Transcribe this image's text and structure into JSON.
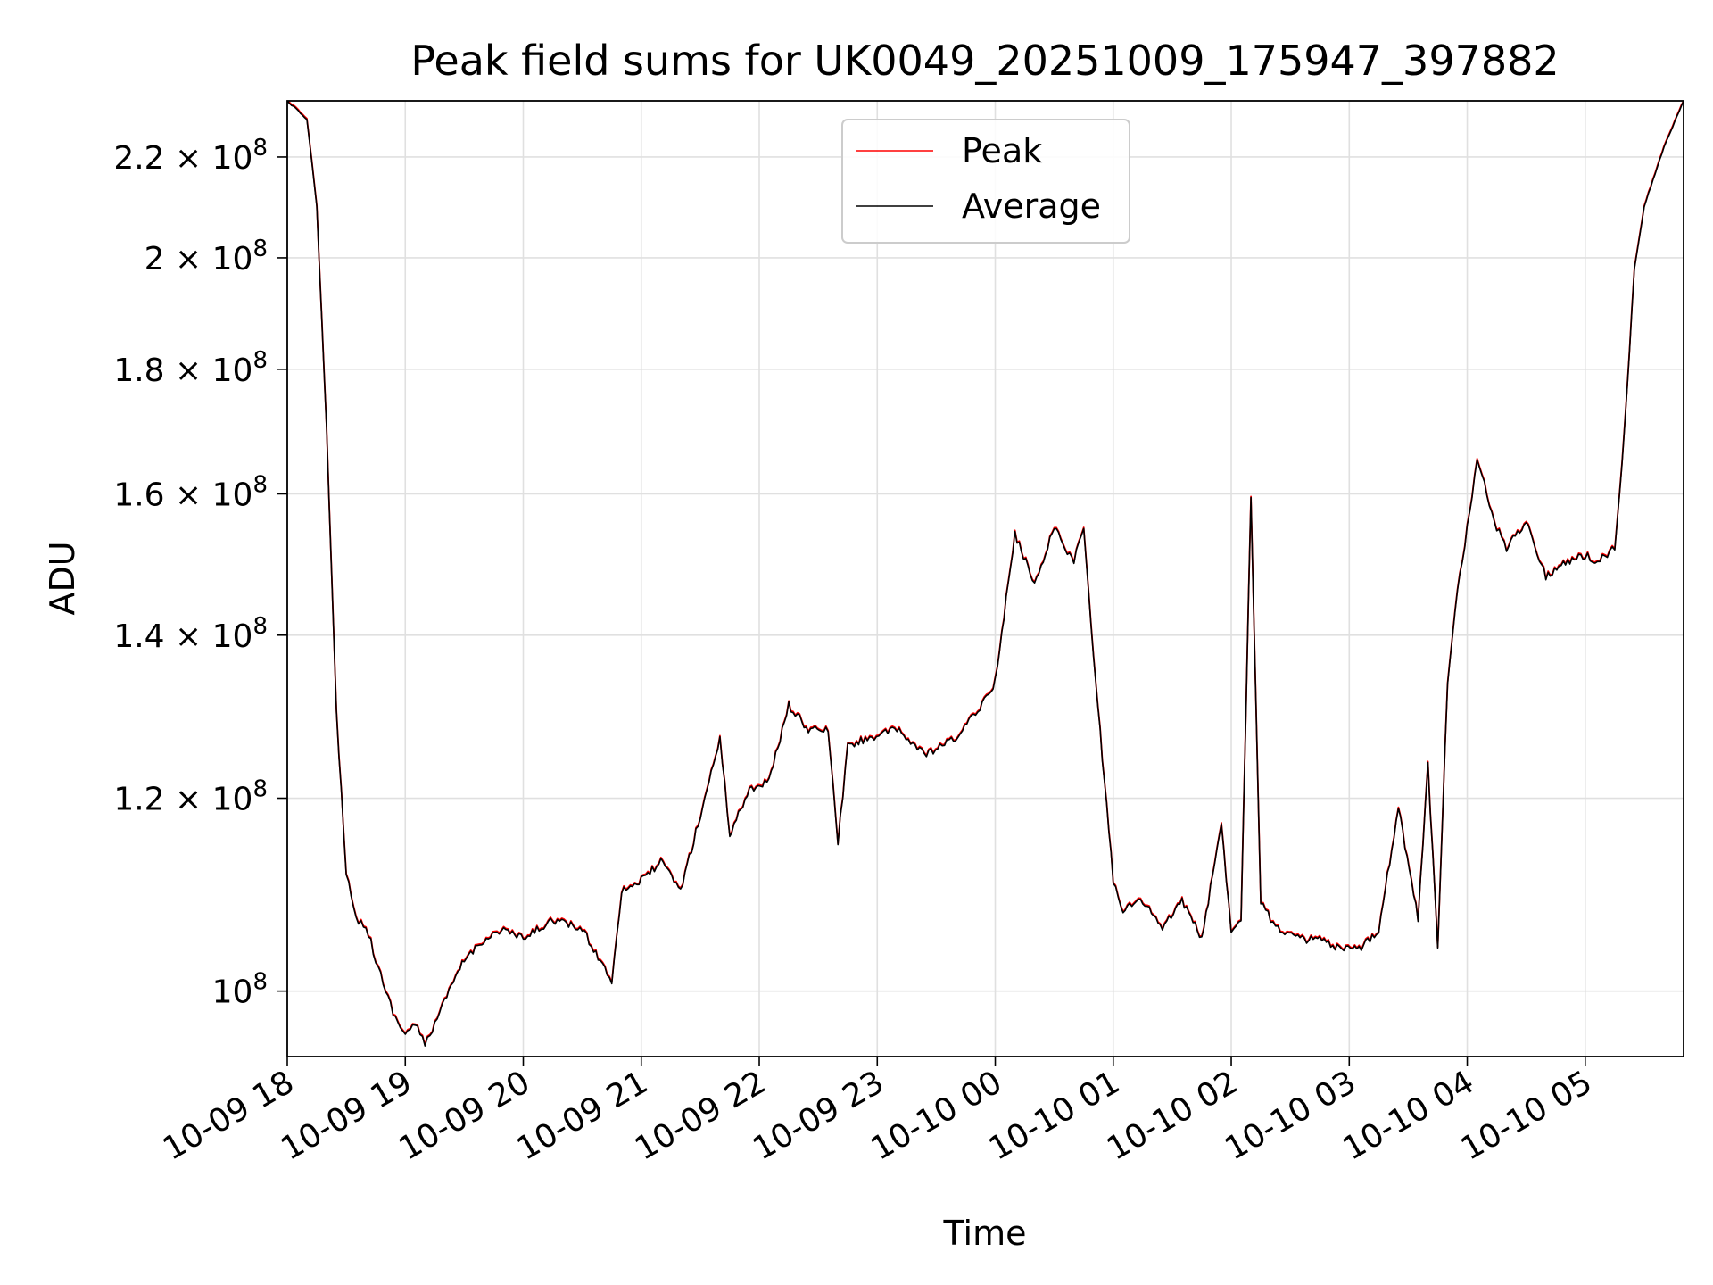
{
  "chart_data": {
    "type": "line",
    "title": "Peak field sums for UK0049_20251009_175947_397882",
    "xlabel": "Time",
    "ylabel": "ADU",
    "yscale": "log",
    "ylim": [
      94000000,
      232000000
    ],
    "xlim": [
      "2025-10-09 18:00",
      "2025-10-10 05:50"
    ],
    "grid": true,
    "legend_position": "upper center",
    "x_ticks": [
      "10-09 18",
      "10-09 19",
      "10-09 20",
      "10-09 21",
      "10-09 22",
      "10-09 23",
      "10-10 00",
      "10-10 01",
      "10-10 02",
      "10-10 03",
      "10-10 04",
      "10-10 05"
    ],
    "y_ticks": [
      {
        "value": 100000000,
        "base": "10",
        "mantissa": "",
        "exp": "8"
      },
      {
        "value": 120000000,
        "base": "10",
        "mantissa": "1.2",
        "exp": "8"
      },
      {
        "value": 140000000,
        "base": "10",
        "mantissa": "1.4",
        "exp": "8"
      },
      {
        "value": 160000000,
        "base": "10",
        "mantissa": "1.6",
        "exp": "8"
      },
      {
        "value": 180000000,
        "base": "10",
        "mantissa": "1.8",
        "exp": "8"
      },
      {
        "value": 200000000,
        "base": "10",
        "mantissa": "2",
        "exp": "8"
      },
      {
        "value": 220000000,
        "base": "10",
        "mantissa": "2.2",
        "exp": "8"
      }
    ],
    "series": [
      {
        "name": "Peak",
        "color": "#ff0000"
      },
      {
        "name": "Average",
        "color": "#000000"
      }
    ],
    "x": [
      "2025-10-09 18:00",
      "2025-10-09 18:10",
      "2025-10-09 18:15",
      "2025-10-09 18:20",
      "2025-10-09 18:25",
      "2025-10-09 18:30",
      "2025-10-09 18:35",
      "2025-10-09 18:40",
      "2025-10-09 18:45",
      "2025-10-09 18:50",
      "2025-10-09 18:55",
      "2025-10-09 19:00",
      "2025-10-09 19:05",
      "2025-10-09 19:10",
      "2025-10-09 19:15",
      "2025-10-09 19:20",
      "2025-10-09 19:30",
      "2025-10-09 19:40",
      "2025-10-09 19:50",
      "2025-10-09 20:00",
      "2025-10-09 20:15",
      "2025-10-09 20:30",
      "2025-10-09 20:45",
      "2025-10-09 20:50",
      "2025-10-09 21:00",
      "2025-10-09 21:10",
      "2025-10-09 21:20",
      "2025-10-09 21:30",
      "2025-10-09 21:40",
      "2025-10-09 21:45",
      "2025-10-09 21:55",
      "2025-10-09 22:05",
      "2025-10-09 22:15",
      "2025-10-09 22:25",
      "2025-10-09 22:35",
      "2025-10-09 22:40",
      "2025-10-09 22:45",
      "2025-10-09 22:55",
      "2025-10-09 23:10",
      "2025-10-09 23:25",
      "2025-10-09 23:40",
      "2025-10-09 23:50",
      "2025-10-10 00:00",
      "2025-10-10 00:10",
      "2025-10-10 00:20",
      "2025-10-10 00:30",
      "2025-10-10 00:40",
      "2025-10-10 00:45",
      "2025-10-10 00:50",
      "2025-10-10 01:00",
      "2025-10-10 01:05",
      "2025-10-10 01:15",
      "2025-10-10 01:25",
      "2025-10-10 01:35",
      "2025-10-10 01:45",
      "2025-10-10 01:55",
      "2025-10-10 02:00",
      "2025-10-10 02:05",
      "2025-10-10 02:10",
      "2025-10-10 02:15",
      "2025-10-10 02:20",
      "2025-10-10 02:25",
      "2025-10-10 02:35",
      "2025-10-10 02:45",
      "2025-10-10 02:55",
      "2025-10-10 03:05",
      "2025-10-10 03:15",
      "2025-10-10 03:25",
      "2025-10-10 03:35",
      "2025-10-10 03:40",
      "2025-10-10 03:45",
      "2025-10-10 03:50",
      "2025-10-10 03:55",
      "2025-10-10 04:00",
      "2025-10-10 04:05",
      "2025-10-10 04:10",
      "2025-10-10 04:15",
      "2025-10-10 04:20",
      "2025-10-10 04:30",
      "2025-10-10 04:40",
      "2025-10-10 04:50",
      "2025-10-10 05:00",
      "2025-10-10 05:05",
      "2025-10-10 05:10",
      "2025-10-10 05:15",
      "2025-10-10 05:20",
      "2025-10-10 05:25",
      "2025-10-10 05:30",
      "2025-10-10 05:40",
      "2025-10-10 05:50"
    ],
    "values": [
      232000000,
      228000000,
      210000000,
      170000000,
      130000000,
      112000000,
      107000000,
      106500000,
      103000000,
      100000000,
      97500000,
      96000000,
      97000000,
      95000000,
      97000000,
      99000000,
      103000000,
      105000000,
      106000000,
      105000000,
      107000000,
      106000000,
      101000000,
      110000000,
      111000000,
      113000000,
      110000000,
      118000000,
      127000000,
      116000000,
      121000000,
      122000000,
      131000000,
      128000000,
      128000000,
      115000000,
      126000000,
      127000000,
      128000000,
      125000000,
      127000000,
      130000000,
      134000000,
      154000000,
      147000000,
      155000000,
      150000000,
      155000000,
      137000000,
      111000000,
      108000000,
      109000000,
      106000000,
      109000000,
      105000000,
      117000000,
      106000000,
      107000000,
      160000000,
      109000000,
      107000000,
      106000000,
      105000000,
      105000000,
      104000000,
      104000000,
      106000000,
      119000000,
      107000000,
      124000000,
      104000000,
      134000000,
      146000000,
      155000000,
      165000000,
      160000000,
      155000000,
      152000000,
      156000000,
      148000000,
      150000000,
      151000000,
      150000000,
      151000000,
      152000000,
      170000000,
      198000000,
      210000000,
      222000000,
      232000000
    ]
  }
}
